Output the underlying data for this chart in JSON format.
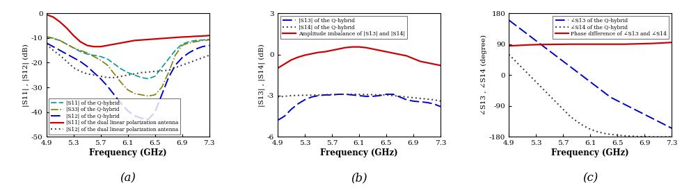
{
  "freq": [
    4.9,
    5.0,
    5.1,
    5.2,
    5.3,
    5.4,
    5.5,
    5.6,
    5.7,
    5.8,
    5.9,
    6.0,
    6.1,
    6.2,
    6.3,
    6.4,
    6.5,
    6.6,
    6.7,
    6.8,
    6.9,
    7.0,
    7.1,
    7.2,
    7.3
  ],
  "a_S11_qhybrid": [
    -9.5,
    -10.2,
    -11.0,
    -12.5,
    -14.0,
    -15.5,
    -16.5,
    -17.0,
    -17.5,
    -18.5,
    -20.5,
    -22.5,
    -24.0,
    -25.0,
    -26.0,
    -26.5,
    -25.5,
    -22.0,
    -18.5,
    -15.0,
    -12.5,
    -11.5,
    -11.0,
    -10.8,
    -10.5
  ],
  "a_S33_qhybrid": [
    -9.5,
    -10.0,
    -11.0,
    -12.5,
    -14.0,
    -15.0,
    -16.0,
    -17.5,
    -19.0,
    -21.0,
    -24.5,
    -28.0,
    -31.0,
    -32.5,
    -33.0,
    -33.5,
    -33.0,
    -30.0,
    -24.0,
    -17.0,
    -13.0,
    -12.0,
    -11.5,
    -11.0,
    -10.8
  ],
  "a_S12_qhybrid": [
    -12.0,
    -13.5,
    -15.0,
    -16.5,
    -18.0,
    -19.5,
    -21.5,
    -24.0,
    -26.5,
    -29.5,
    -33.0,
    -36.5,
    -39.5,
    -41.5,
    -42.5,
    -43.0,
    -40.0,
    -33.0,
    -26.0,
    -21.0,
    -18.0,
    -16.0,
    -14.5,
    -13.5,
    -13.0
  ],
  "a_S11_dual": [
    -0.5,
    -1.5,
    -3.5,
    -6.0,
    -9.0,
    -11.5,
    -13.0,
    -13.5,
    -13.5,
    -13.0,
    -12.5,
    -12.0,
    -11.5,
    -11.0,
    -10.8,
    -10.6,
    -10.4,
    -10.2,
    -10.0,
    -9.8,
    -9.6,
    -9.5,
    -9.3,
    -9.2,
    -9.0
  ],
  "a_S12_dual": [
    -12.5,
    -15.0,
    -17.0,
    -19.5,
    -22.0,
    -23.5,
    -24.5,
    -25.0,
    -25.5,
    -26.0,
    -26.0,
    -25.5,
    -25.0,
    -24.5,
    -24.0,
    -23.8,
    -23.5,
    -23.3,
    -23.0,
    -22.0,
    -21.0,
    -20.0,
    -19.0,
    -18.0,
    -17.0
  ],
  "b_S13": [
    -4.8,
    -4.5,
    -4.0,
    -3.6,
    -3.3,
    -3.1,
    -3.0,
    -2.95,
    -2.95,
    -2.9,
    -2.9,
    -2.95,
    -3.0,
    -3.05,
    -3.05,
    -3.0,
    -2.9,
    -2.9,
    -3.1,
    -3.3,
    -3.4,
    -3.45,
    -3.5,
    -3.6,
    -3.8
  ],
  "b_S14": [
    -3.1,
    -3.05,
    -3.0,
    -2.98,
    -2.97,
    -2.96,
    -2.95,
    -2.93,
    -2.92,
    -2.91,
    -2.9,
    -2.9,
    -2.91,
    -2.92,
    -2.93,
    -2.94,
    -2.95,
    -3.0,
    -3.05,
    -3.1,
    -3.15,
    -3.2,
    -3.25,
    -3.3,
    -3.4
  ],
  "b_amp_imbalance": [
    -1.0,
    -0.7,
    -0.4,
    -0.2,
    -0.05,
    0.05,
    0.15,
    0.2,
    0.3,
    0.4,
    0.5,
    0.55,
    0.55,
    0.5,
    0.4,
    0.3,
    0.2,
    0.1,
    0.0,
    -0.1,
    -0.3,
    -0.5,
    -0.6,
    -0.7,
    -0.8
  ],
  "c_S13_phase": [
    160,
    145,
    130,
    115,
    100,
    85,
    70,
    55,
    40,
    25,
    10,
    -5,
    -20,
    -35,
    -50,
    -65,
    -75,
    -85,
    -95,
    -105,
    -115,
    -125,
    -135,
    -145,
    -155
  ],
  "c_S14_phase": [
    60,
    40,
    20,
    0,
    -20,
    -40,
    -60,
    -80,
    -100,
    -120,
    -135,
    -148,
    -158,
    -165,
    -170,
    -173,
    -175,
    -177,
    -178,
    -179,
    -179.5,
    -180,
    -180,
    -180,
    -180
  ],
  "c_phase_diff": [
    85,
    86,
    87,
    88,
    88.5,
    89,
    89.3,
    89.5,
    89.7,
    90,
    90,
    90,
    90,
    90,
    90,
    90,
    90,
    90,
    90.5,
    91,
    91.5,
    92,
    93,
    94,
    95
  ],
  "a_xlim": [
    4.9,
    7.3
  ],
  "a_ylim": [
    -50,
    0
  ],
  "a_yticks": [
    0,
    -10,
    -20,
    -30,
    -40,
    -50
  ],
  "b_xlim": [
    4.9,
    7.3
  ],
  "b_ylim": [
    -6,
    3
  ],
  "b_yticks": [
    -6,
    -3,
    0,
    3
  ],
  "c_xlim": [
    4.9,
    7.3
  ],
  "c_ylim": [
    -180,
    180
  ],
  "c_yticks": [
    -180,
    -90,
    0,
    90,
    180
  ],
  "xticks": [
    4.9,
    5.3,
    5.7,
    6.1,
    6.5,
    6.9,
    7.3
  ],
  "color_cyan_dash": "#009999",
  "color_olive_dashdot": "#808000",
  "color_blue_dash": "#0000CC",
  "color_red_solid": "#CC0000",
  "color_black_dot": "#333333",
  "xlabel": "Frequency (GHz)",
  "a_ylabel": "|S11| , |S12| (dB)",
  "b_ylabel": "|S13| , |S14| (dB)",
  "c_ylabel": "∠S13 , ∠S14 (degree)",
  "a_legend": [
    "|S11| of the Q-hybrid",
    "|S33| of the Q-hybrid",
    "|S12| of the Q-hybrid",
    "|S11| of the dual linear polarization antenna",
    "|S12| of the dual linear polarization antenna"
  ],
  "b_legend": [
    "|S13| of the Q-hybrid",
    "|S14| of the Q-hybrid",
    "Amplitude imbalance of |S13| and |S14|"
  ],
  "c_legend": [
    "∠S13 of the Q-hybrid",
    "∠S14 of the Q-hybrid",
    "Phase difference of ∠S13 and ∠S14"
  ],
  "label_a": "(a)",
  "label_b": "(b)",
  "label_c": "(c)"
}
